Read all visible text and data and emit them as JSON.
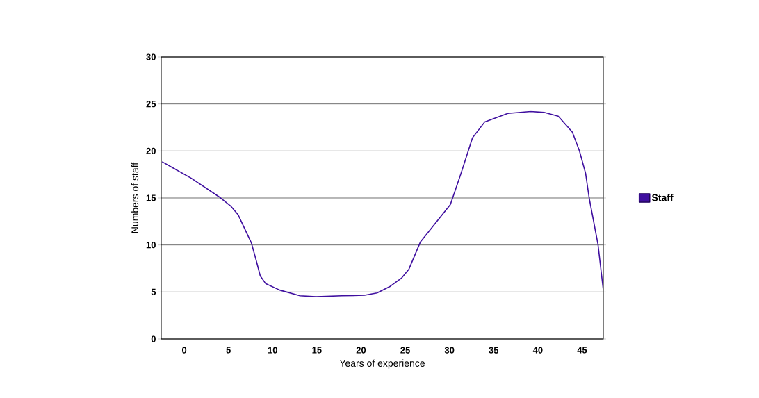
{
  "chart_data": {
    "type": "line",
    "xlabel": "Years of experience",
    "ylabel": "Numbers of staff",
    "xlim": [
      -2.6,
      47.4
    ],
    "xticks": [
      0,
      5,
      10,
      15,
      20,
      25,
      30,
      35,
      40,
      45
    ],
    "ylim": [
      0,
      30
    ],
    "yticks": [
      0,
      5,
      10,
      15,
      20,
      25,
      30
    ],
    "grid": "y",
    "legend": "right",
    "marker": "none",
    "line_style": "solid",
    "series": [
      {
        "name": "Staff",
        "color": "#3f0f9f",
        "x": [
          -2.5,
          0.8,
          3.9,
          5.3,
          6.1,
          7.6,
          8.1,
          8.6,
          9.2,
          10.8,
          13.1,
          14.9,
          17.8,
          20.4,
          21.8,
          23.3,
          24.6,
          25.4,
          26.7,
          30.1,
          31.3,
          32.6,
          34.0,
          36.6,
          39.2,
          40.7,
          42.3,
          43.9,
          44.7,
          45.4,
          45.8,
          46.8,
          47.4
        ],
        "values": [
          18.85,
          17.1,
          15.15,
          14.1,
          13.2,
          10.2,
          8.5,
          6.7,
          5.9,
          5.2,
          4.6,
          4.5,
          4.6,
          4.65,
          4.9,
          5.6,
          6.5,
          7.4,
          10.3,
          14.3,
          17.6,
          21.4,
          23.1,
          24.0,
          24.2,
          24.1,
          23.7,
          22.0,
          20.0,
          17.6,
          15.0,
          10.05,
          5.2
        ]
      }
    ]
  }
}
